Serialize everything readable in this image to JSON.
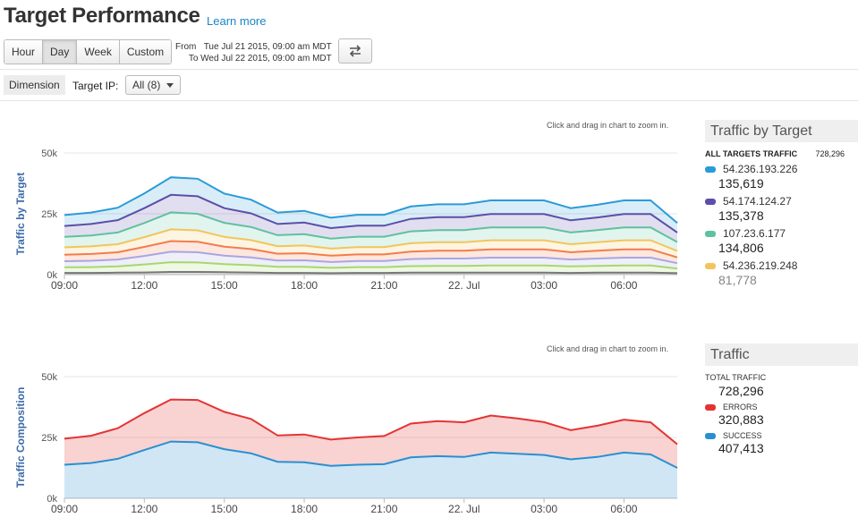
{
  "page": {
    "title": "Target Performance",
    "learn_more": "Learn more"
  },
  "range_buttons": [
    "Hour",
    "Day",
    "Week",
    "Custom"
  ],
  "active_range": "Day",
  "time_range": {
    "from_label": "From",
    "from": "Tue Jul 21 2015, 09:00 am MDT",
    "to_label": "To",
    "to": "Wed Jul 22 2015, 09:00 am MDT"
  },
  "filters": {
    "dimension_label": "Dimension",
    "target_ip_label": "Target IP:",
    "target_ip_value": "All (8)"
  },
  "zoom_hint": "Click and drag in chart to zoom in.",
  "colors": {
    "link": "#1a84c6",
    "errors": "#e53333",
    "success": "#2a8fd0"
  },
  "traffic_by_target_panel": {
    "title": "Traffic by Target",
    "all_label": "ALL TARGETS TRAFFIC",
    "all_value": "728,296",
    "entries": [
      {
        "name": "54.236.193.226",
        "value": "135,619",
        "color": "#2a9bd8"
      },
      {
        "name": "54.174.124.27",
        "value": "135,378",
        "color": "#5b4fa8"
      },
      {
        "name": "107.23.6.177",
        "value": "134,806",
        "color": "#5fc1a0"
      },
      {
        "name": "54.236.219.248",
        "value": "81,778",
        "color": "#f2c55c"
      }
    ]
  },
  "traffic_panel": {
    "title": "Traffic",
    "total_label": "TOTAL TRAFFIC",
    "total_value": "728,296",
    "errors_label": "ERRORS",
    "errors_value": "320,883",
    "success_label": "SUCCESS",
    "success_value": "407,413"
  },
  "chart_data": [
    {
      "type": "area",
      "ylabel": "Traffic by Target",
      "ylim": [
        0,
        50000
      ],
      "yticks": [
        "0k",
        "25k",
        "50k"
      ],
      "xticks": [
        "09:00",
        "12:00",
        "15:00",
        "18:00",
        "21:00",
        "22. Jul",
        "03:00",
        "06:00"
      ],
      "x": [
        0,
        1,
        2,
        3,
        4,
        5,
        6,
        7,
        8,
        9,
        10,
        11,
        12,
        13,
        14,
        15,
        16,
        17,
        18,
        19,
        20,
        21,
        22,
        23
      ],
      "stacked": true,
      "series": [
        {
          "color": "#777777",
          "values": [
            700,
            700,
            800,
            900,
            1100,
            1100,
            1000,
            900,
            700,
            700,
            600,
            700,
            700,
            800,
            800,
            800,
            800,
            800,
            800,
            700,
            800,
            800,
            800,
            600
          ]
        },
        {
          "color": "#a6d86e",
          "values": [
            2300,
            2400,
            2600,
            3300,
            4000,
            3900,
            3300,
            3000,
            2500,
            2500,
            2200,
            2400,
            2400,
            2700,
            2800,
            2800,
            3000,
            3000,
            3000,
            2700,
            2800,
            3000,
            3000,
            1900
          ]
        },
        {
          "color": "#a9a6e0",
          "values": [
            2500,
            2600,
            2800,
            3500,
            4300,
            4200,
            3500,
            3200,
            2600,
            2700,
            2400,
            2500,
            2500,
            2900,
            3000,
            3000,
            3200,
            3200,
            3200,
            2800,
            3000,
            3200,
            3200,
            2200
          ]
        },
        {
          "color": "#f47c4c",
          "values": [
            2700,
            2800,
            3000,
            3700,
            4400,
            4300,
            3700,
            3400,
            2800,
            2900,
            2600,
            2700,
            2700,
            3100,
            3200,
            3200,
            3400,
            3400,
            3400,
            3000,
            3200,
            3400,
            3400,
            2400
          ]
        },
        {
          "color": "#f2c55c",
          "values": [
            3000,
            3100,
            3300,
            4000,
            4800,
            4700,
            4000,
            3700,
            3100,
            3200,
            2900,
            3000,
            3000,
            3400,
            3500,
            3500,
            3700,
            3700,
            3700,
            3300,
            3500,
            3700,
            3700,
            2600
          ]
        },
        {
          "color": "#5fc1a0",
          "values": [
            4300,
            4500,
            4800,
            5800,
            7000,
            6800,
            5800,
            5400,
            4500,
            4600,
            4100,
            4300,
            4300,
            4900,
            5000,
            5000,
            5300,
            5300,
            5300,
            4800,
            5000,
            5300,
            5300,
            3700
          ]
        },
        {
          "color": "#5b4fa8",
          "values": [
            4500,
            4700,
            5100,
            6100,
            7200,
            7200,
            6000,
            5600,
            4600,
            4800,
            4300,
            4500,
            4500,
            5100,
            5300,
            5300,
            5500,
            5500,
            5500,
            5000,
            5200,
            5500,
            5500,
            3900
          ]
        },
        {
          "color": "#2a9bd8",
          "values": [
            4500,
            4700,
            5100,
            6100,
            7200,
            7200,
            6000,
            5600,
            4700,
            4800,
            4300,
            4500,
            4500,
            5100,
            5300,
            5300,
            5600,
            5600,
            5600,
            5000,
            5200,
            5600,
            5600,
            3900
          ]
        }
      ]
    },
    {
      "type": "area",
      "ylabel": "Traffic Composition",
      "ylim": [
        0,
        50000
      ],
      "yticks": [
        "0k",
        "25k",
        "50k"
      ],
      "xticks": [
        "09:00",
        "12:00",
        "15:00",
        "18:00",
        "21:00",
        "22. Jul",
        "03:00",
        "06:00"
      ],
      "x": [
        0,
        1,
        2,
        3,
        4,
        5,
        6,
        7,
        8,
        9,
        10,
        11,
        12,
        13,
        14,
        15,
        16,
        17,
        18,
        19,
        20,
        21,
        22,
        23
      ],
      "stacked": true,
      "series": [
        {
          "name": "SUCCESS",
          "color": "#2a8fd0",
          "values": [
            13800,
            14500,
            16200,
            19800,
            23300,
            23000,
            20200,
            18500,
            15000,
            14800,
            13300,
            13800,
            14000,
            16800,
            17300,
            17000,
            18800,
            18300,
            17800,
            16000,
            17000,
            18800,
            18000,
            12500
          ]
        },
        {
          "name": "ERRORS",
          "color": "#e53333",
          "values": [
            10700,
            11200,
            12600,
            15200,
            17300,
            17400,
            15300,
            14100,
            10800,
            11400,
            10800,
            11200,
            11600,
            13900,
            14400,
            14200,
            15200,
            14500,
            13500,
            12000,
            12800,
            13500,
            13200,
            9700
          ]
        }
      ]
    }
  ]
}
